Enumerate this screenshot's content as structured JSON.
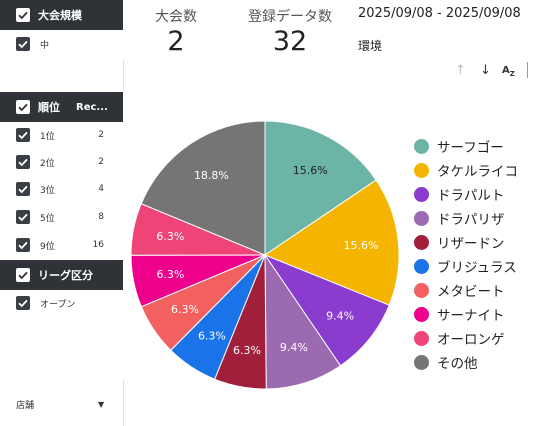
{
  "sidebar": {
    "tournament_size": {
      "title": "大会規模",
      "items": [
        {
          "label": "中"
        }
      ]
    },
    "rank": {
      "title": "順位",
      "col2": "Rec...",
      "items": [
        {
          "label": "1位",
          "count": "2"
        },
        {
          "label": "2位",
          "count": "2"
        },
        {
          "label": "3位",
          "count": "4"
        },
        {
          "label": "5位",
          "count": "8"
        },
        {
          "label": "9位",
          "count": "16"
        }
      ]
    },
    "league": {
      "title": "リーグ区分",
      "items": [
        {
          "label": "オープン"
        }
      ]
    },
    "store": {
      "label": "店舗"
    }
  },
  "metrics": {
    "tournaments": {
      "label": "大会数",
      "value": "2"
    },
    "entries": {
      "label": "登録データ数",
      "value": "32"
    }
  },
  "date_range": "2025/09/08 - 2025/09/08",
  "environment_label": "環境",
  "toolbar": {
    "sort_asc_icon": "arrow-up-icon",
    "sort_desc_icon": "arrow-down-icon",
    "sort_alpha_icon": "sort-az-icon"
  },
  "chart_data": {
    "type": "pie",
    "title": "",
    "legend_position": "right",
    "slices": [
      {
        "label": "サーフゴー",
        "value": 15.6,
        "display": "15.6%",
        "color": "#6cb4a6"
      },
      {
        "label": "タケルライコ",
        "value": 15.6,
        "display": "15.6%",
        "color": "#f4b400"
      },
      {
        "label": "ドラパルト",
        "value": 9.4,
        "display": "9.4%",
        "color": "#8a3ccf"
      },
      {
        "label": "ドラパリザ",
        "value": 9.4,
        "display": "9.4%",
        "color": "#9c6ab0"
      },
      {
        "label": "リザードン",
        "value": 6.3,
        "display": "6.3%",
        "color": "#a0203c"
      },
      {
        "label": "ブリジュラス",
        "value": 6.3,
        "display": "6.3%",
        "color": "#1a73e8"
      },
      {
        "label": "メタビート",
        "value": 6.3,
        "display": "6.3%",
        "color": "#f26060"
      },
      {
        "label": "サーナイト",
        "value": 6.3,
        "display": "6.3%",
        "color": "#ec008c"
      },
      {
        "label": "オーロンゲ",
        "value": 6.3,
        "display": "6.3%",
        "color": "#ee4478"
      },
      {
        "label": "その他",
        "value": 18.8,
        "display": "18.8%",
        "color": "#757575"
      }
    ]
  }
}
